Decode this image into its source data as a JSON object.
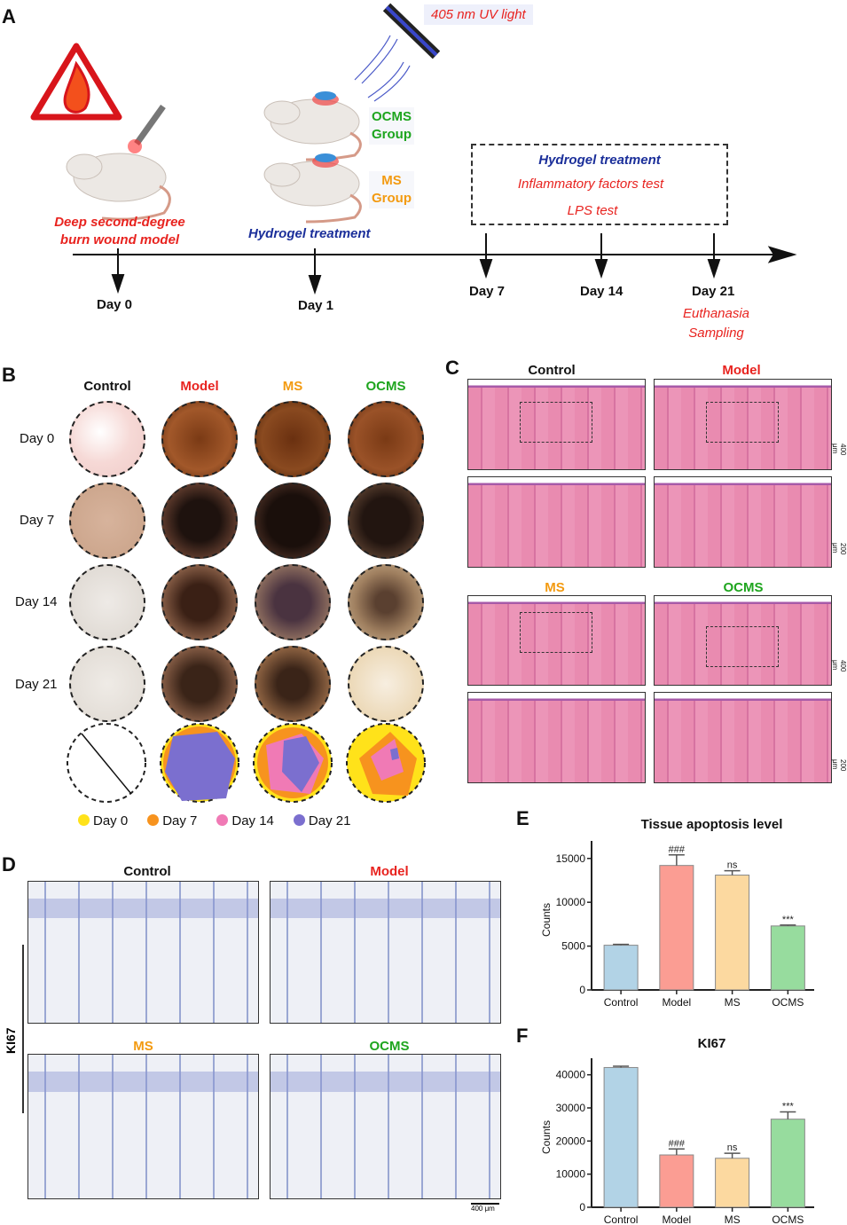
{
  "panel_labels": {
    "a": "A",
    "b": "B",
    "c": "C",
    "d": "D",
    "e": "E",
    "f": "F"
  },
  "panelA": {
    "uv_light": "405 nm UV light",
    "ocms_group": [
      "OCMS",
      "Group"
    ],
    "ms_group": [
      "MS",
      "Group"
    ],
    "burn_model": [
      "Deep second-degree",
      "burn wound model"
    ],
    "day1_treatment": "Hydrogel treatment",
    "box": {
      "line1": "Hydrogel treatment",
      "line2": "Inflammatory factors test",
      "line3": "LPS test"
    },
    "days": [
      "Day 0",
      "Day 1",
      "Day 7",
      "Day 14",
      "Day 21"
    ],
    "day21_notes": [
      "Euthanasia",
      "Sampling"
    ],
    "icons": [
      "fire-warning-icon",
      "laser-pen-icon",
      "uv-lamp-icon",
      "rat-icon"
    ]
  },
  "panelB": {
    "columns": [
      "Control",
      "Model",
      "MS",
      "OCMS"
    ],
    "rows": [
      "Day 0",
      "Day 7",
      "Day 14",
      "Day 21"
    ],
    "legend": [
      {
        "label": "Day 0",
        "color": "#ffe21a"
      },
      {
        "label": "Day 7",
        "color": "#f7931e"
      },
      {
        "label": "Day 14",
        "color": "#f07ab5"
      },
      {
        "label": "Day 21",
        "color": "#7b6fcf"
      }
    ]
  },
  "panelC": {
    "groups": [
      "Control",
      "Model",
      "MS",
      "OCMS"
    ],
    "scale_low": "400 μm",
    "scale_high": "200 μm"
  },
  "panelD": {
    "groups": [
      "Control",
      "Model",
      "MS",
      "OCMS"
    ],
    "side_label": "KI67",
    "scale": "400 μm"
  },
  "colors": {
    "control": "#b2d3e6",
    "model": "#fb9d93",
    "ms": "#fcd9a0",
    "ocms": "#97dc9e",
    "model_text": "#e8231f",
    "ms_text": "#f39a10",
    "ocms_text": "#1ea51e"
  },
  "chart_data": [
    {
      "type": "bar",
      "title": "Tissue apoptosis level",
      "xlabel": "",
      "ylabel": "Counts",
      "categories": [
        "Control",
        "Model",
        "MS",
        "OCMS"
      ],
      "values": [
        5100,
        14200,
        13100,
        7300
      ],
      "errors": [
        100,
        1200,
        500,
        100
      ],
      "annotations": [
        "",
        "###",
        "ns",
        "***"
      ],
      "ylim": [
        0,
        17000
      ],
      "yticks": [
        0,
        5000,
        10000,
        15000
      ],
      "grid": false
    },
    {
      "type": "bar",
      "title": "KI67",
      "xlabel": "",
      "ylabel": "Counts",
      "categories": [
        "Control",
        "Model",
        "MS",
        "OCMS"
      ],
      "values": [
        42200,
        15800,
        14800,
        26600
      ],
      "errors": [
        400,
        1800,
        1500,
        2200
      ],
      "annotations": [
        "",
        "###",
        "ns",
        "***"
      ],
      "ylim": [
        0,
        45000
      ],
      "yticks": [
        0,
        10000,
        20000,
        30000,
        40000
      ],
      "grid": false
    }
  ]
}
